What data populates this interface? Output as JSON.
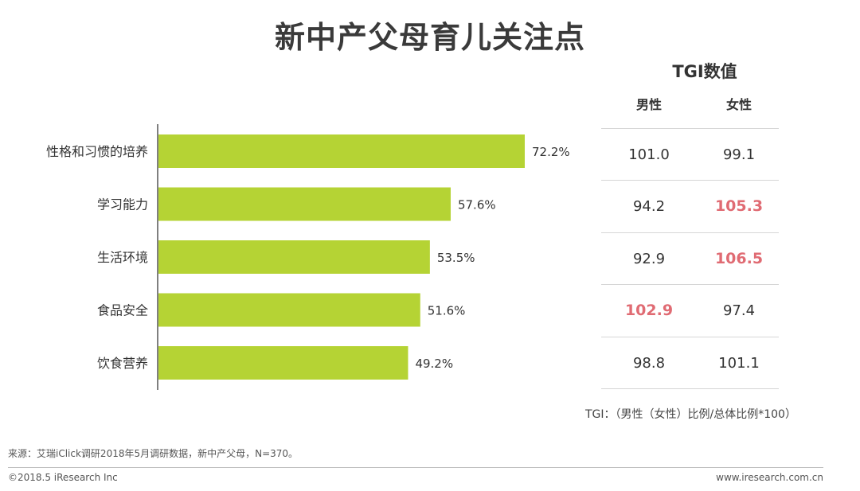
{
  "title": "新中产父母育儿关注点",
  "chart_data": {
    "type": "bar",
    "orientation": "horizontal",
    "categories": [
      "性格和习惯的培养",
      "学习能力",
      "生活环境",
      "食品安全",
      "饮食营养"
    ],
    "values": [
      72.2,
      57.6,
      53.5,
      51.6,
      49.2
    ],
    "value_labels": [
      "72.2%",
      "57.6%",
      "53.5%",
      "51.6%",
      "49.2%"
    ],
    "xlim": [
      0,
      100
    ],
    "bar_color": "#b5d334"
  },
  "tgi": {
    "title": "TGI数值",
    "headers": [
      "男性",
      "女性"
    ],
    "rows": [
      {
        "male": "101.0",
        "female": "99.1",
        "male_highlight": false,
        "female_highlight": false
      },
      {
        "male": "94.2",
        "female": "105.3",
        "male_highlight": false,
        "female_highlight": true
      },
      {
        "male": "92.9",
        "female": "106.5",
        "male_highlight": false,
        "female_highlight": true
      },
      {
        "male": "102.9",
        "female": "97.4",
        "male_highlight": true,
        "female_highlight": false
      },
      {
        "male": "98.8",
        "female": "101.1",
        "male_highlight": false,
        "female_highlight": false
      }
    ],
    "highlight_color": "#e06b73",
    "formula": "TGI：（男性（女性）比例/总体比例*100）"
  },
  "footer": {
    "source": "来源：艾瑞iClick调研2018年5月调研数据，新中产父母，N=370。",
    "copyright": "©2018.5 iResearch Inc",
    "website": "www.iresearch.com.cn"
  }
}
